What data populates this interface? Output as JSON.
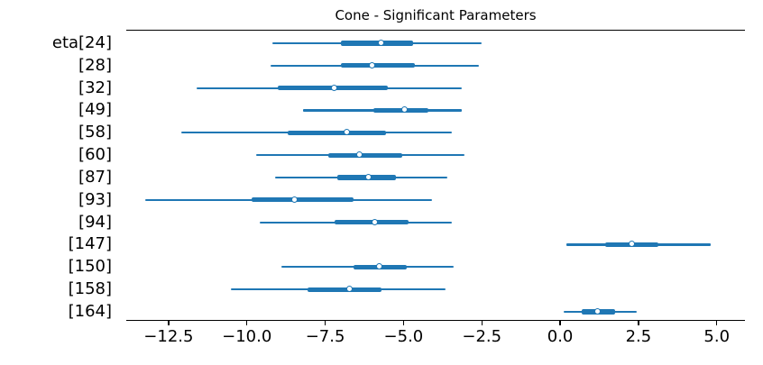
{
  "figure": {
    "title": "Cone - Significant Parameters",
    "accent_color": "#1f77b4",
    "axis_color": "#000000",
    "background_color": "#ffffff"
  },
  "chart_data": {
    "type": "forest",
    "title": "Cone - Significant Parameters",
    "xlabel": "",
    "ylabel": "",
    "legend": "none",
    "grid": false,
    "xlim": [
      -13.85,
      5.9
    ],
    "x_ticks": [
      {
        "value": -12.5,
        "label": "−12.5"
      },
      {
        "value": -10.0,
        "label": "−10.0"
      },
      {
        "value": -7.5,
        "label": "−7.5"
      },
      {
        "value": -5.0,
        "label": "−5.0"
      },
      {
        "value": -2.5,
        "label": "−2.5"
      },
      {
        "value": 0.0,
        "label": "0.0"
      },
      {
        "value": 2.5,
        "label": "2.5"
      },
      {
        "value": 5.0,
        "label": "5.0"
      }
    ],
    "rows": [
      {
        "label": "eta[24]",
        "ci_low": -9.2,
        "ci_high": -2.5,
        "hdi_low": -7.0,
        "hdi_high": -4.7,
        "median": -5.7
      },
      {
        "label": "[28]",
        "ci_low": -9.25,
        "ci_high": -2.6,
        "hdi_low": -7.0,
        "hdi_high": -4.65,
        "median": -6.0
      },
      {
        "label": "[32]",
        "ci_low": -11.6,
        "ci_high": -3.15,
        "hdi_low": -9.0,
        "hdi_high": -5.5,
        "median": -7.2
      },
      {
        "label": "[49]",
        "ci_low": -8.2,
        "ci_high": -3.15,
        "hdi_low": -5.95,
        "hdi_high": -4.2,
        "median": -4.95
      },
      {
        "label": "[58]",
        "ci_low": -12.1,
        "ci_high": -3.45,
        "hdi_low": -8.7,
        "hdi_high": -5.55,
        "median": -6.8
      },
      {
        "label": "[60]",
        "ci_low": -9.7,
        "ci_high": -3.05,
        "hdi_low": -7.4,
        "hdi_high": -5.05,
        "median": -6.4
      },
      {
        "label": "[87]",
        "ci_low": -9.1,
        "ci_high": -3.6,
        "hdi_low": -7.1,
        "hdi_high": -5.25,
        "median": -6.1
      },
      {
        "label": "[93]",
        "ci_low": -13.25,
        "ci_high": -4.1,
        "hdi_low": -9.85,
        "hdi_high": -6.6,
        "median": -8.45
      },
      {
        "label": "[94]",
        "ci_low": -9.6,
        "ci_high": -3.45,
        "hdi_low": -7.2,
        "hdi_high": -4.85,
        "median": -5.9
      },
      {
        "label": "[147]",
        "ci_low": 0.2,
        "ci_high": 4.8,
        "hdi_low": 1.45,
        "hdi_high": 3.15,
        "median": 2.3
      },
      {
        "label": "[150]",
        "ci_low": -8.9,
        "ci_high": -3.4,
        "hdi_low": -6.6,
        "hdi_high": -4.9,
        "median": -5.75
      },
      {
        "label": "[158]",
        "ci_low": -10.5,
        "ci_high": -3.65,
        "hdi_low": -8.05,
        "hdi_high": -5.7,
        "median": -6.7
      },
      {
        "label": "[164]",
        "ci_low": 0.1,
        "ci_high": 2.45,
        "hdi_low": 0.7,
        "hdi_high": 1.75,
        "median": 1.2
      }
    ]
  }
}
